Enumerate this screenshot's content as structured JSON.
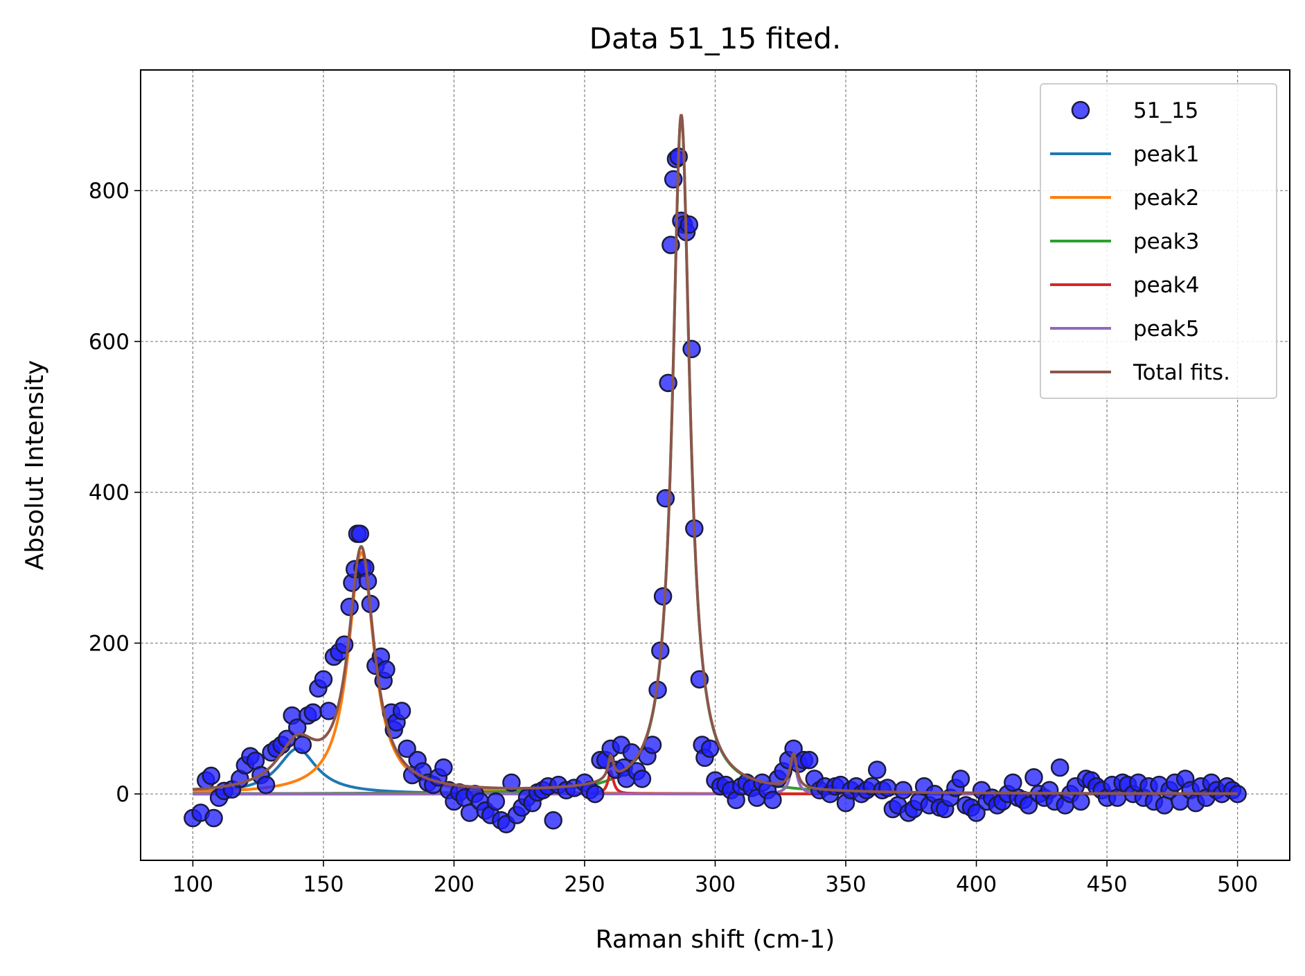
{
  "chart_data": {
    "type": "scatter",
    "title": "Data 51_15 fited.",
    "xlabel": "Raman shift (cm-1)",
    "ylabel": "Absolut Intensity",
    "xlim": [
      80,
      520
    ],
    "ylim": [
      -88,
      960
    ],
    "xticks": [
      100,
      150,
      200,
      250,
      300,
      350,
      400,
      450,
      500
    ],
    "yticks": [
      0,
      200,
      400,
      600,
      800
    ],
    "grid": true,
    "legend_position": "top-right",
    "legend": [
      "51_15",
      "peak1",
      "peak2",
      "peak3",
      "peak4",
      "peak5",
      "Total fits."
    ],
    "scatter": {
      "name": "51_15",
      "color": "#2020ff",
      "edge_color": "#1a1a40",
      "points": [
        [
          100,
          -32
        ],
        [
          103,
          -25
        ],
        [
          105,
          18
        ],
        [
          107,
          24
        ],
        [
          108,
          -32
        ],
        [
          110,
          -5
        ],
        [
          112,
          4
        ],
        [
          115,
          6
        ],
        [
          118,
          20
        ],
        [
          120,
          38
        ],
        [
          122,
          50
        ],
        [
          124,
          44
        ],
        [
          126,
          25
        ],
        [
          128,
          12
        ],
        [
          130,
          55
        ],
        [
          132,
          60
        ],
        [
          134,
          65
        ],
        [
          136,
          73
        ],
        [
          138,
          104
        ],
        [
          140,
          88
        ],
        [
          142,
          65
        ],
        [
          144,
          104
        ],
        [
          146,
          108
        ],
        [
          148,
          140
        ],
        [
          150,
          152
        ],
        [
          152,
          110
        ],
        [
          154,
          182
        ],
        [
          156,
          188
        ],
        [
          158,
          198
        ],
        [
          160,
          248
        ],
        [
          161,
          280
        ],
        [
          162,
          298
        ],
        [
          163,
          345
        ],
        [
          164,
          345
        ],
        [
          165,
          300
        ],
        [
          166,
          300
        ],
        [
          167,
          282
        ],
        [
          168,
          252
        ],
        [
          170,
          170
        ],
        [
          172,
          182
        ],
        [
          173,
          150
        ],
        [
          174,
          165
        ],
        [
          176,
          108
        ],
        [
          177,
          85
        ],
        [
          178,
          95
        ],
        [
          180,
          110
        ],
        [
          182,
          60
        ],
        [
          184,
          25
        ],
        [
          186,
          45
        ],
        [
          188,
          30
        ],
        [
          190,
          15
        ],
        [
          192,
          12
        ],
        [
          194,
          22
        ],
        [
          196,
          35
        ],
        [
          198,
          5
        ],
        [
          200,
          -10
        ],
        [
          202,
          2
        ],
        [
          204,
          -5
        ],
        [
          206,
          -25
        ],
        [
          208,
          0
        ],
        [
          210,
          -10
        ],
        [
          212,
          -22
        ],
        [
          214,
          -28
        ],
        [
          216,
          -10
        ],
        [
          218,
          -35
        ],
        [
          220,
          -40
        ],
        [
          222,
          15
        ],
        [
          224,
          -28
        ],
        [
          226,
          -18
        ],
        [
          228,
          -5
        ],
        [
          230,
          -12
        ],
        [
          232,
          2
        ],
        [
          234,
          5
        ],
        [
          236,
          10
        ],
        [
          238,
          -35
        ],
        [
          240,
          12
        ],
        [
          243,
          5
        ],
        [
          246,
          8
        ],
        [
          250,
          15
        ],
        [
          252,
          5
        ],
        [
          254,
          0
        ],
        [
          256,
          45
        ],
        [
          258,
          45
        ],
        [
          260,
          60
        ],
        [
          262,
          32
        ],
        [
          264,
          65
        ],
        [
          265,
          35
        ],
        [
          266,
          20
        ],
        [
          268,
          55
        ],
        [
          270,
          30
        ],
        [
          272,
          20
        ],
        [
          274,
          50
        ],
        [
          276,
          65
        ],
        [
          278,
          138
        ],
        [
          279,
          190
        ],
        [
          280,
          262
        ],
        [
          281,
          392
        ],
        [
          282,
          545
        ],
        [
          283,
          728
        ],
        [
          284,
          815
        ],
        [
          285,
          842
        ],
        [
          286,
          845
        ],
        [
          287,
          760
        ],
        [
          288,
          755
        ],
        [
          289,
          745
        ],
        [
          290,
          755
        ],
        [
          291,
          590
        ],
        [
          292,
          352
        ],
        [
          294,
          152
        ],
        [
          295,
          65
        ],
        [
          296,
          48
        ],
        [
          298,
          60
        ],
        [
          300,
          18
        ],
        [
          302,
          10
        ],
        [
          304,
          12
        ],
        [
          306,
          5
        ],
        [
          308,
          -8
        ],
        [
          310,
          10
        ],
        [
          312,
          15
        ],
        [
          314,
          8
        ],
        [
          316,
          -5
        ],
        [
          318,
          15
        ],
        [
          320,
          5
        ],
        [
          322,
          -8
        ],
        [
          324,
          20
        ],
        [
          326,
          30
        ],
        [
          328,
          45
        ],
        [
          330,
          60
        ],
        [
          332,
          40
        ],
        [
          334,
          45
        ],
        [
          336,
          45
        ],
        [
          338,
          20
        ],
        [
          340,
          5
        ],
        [
          342,
          10
        ],
        [
          344,
          0
        ],
        [
          346,
          10
        ],
        [
          348,
          12
        ],
        [
          350,
          -12
        ],
        [
          352,
          5
        ],
        [
          354,
          10
        ],
        [
          356,
          0
        ],
        [
          358,
          5
        ],
        [
          360,
          10
        ],
        [
          362,
          32
        ],
        [
          364,
          5
        ],
        [
          366,
          8
        ],
        [
          368,
          -20
        ],
        [
          370,
          -15
        ],
        [
          372,
          5
        ],
        [
          374,
          -25
        ],
        [
          376,
          -20
        ],
        [
          378,
          -10
        ],
        [
          380,
          10
        ],
        [
          382,
          -15
        ],
        [
          384,
          0
        ],
        [
          386,
          -18
        ],
        [
          388,
          -20
        ],
        [
          390,
          -5
        ],
        [
          392,
          8
        ],
        [
          394,
          20
        ],
        [
          396,
          -15
        ],
        [
          398,
          -18
        ],
        [
          400,
          -25
        ],
        [
          402,
          5
        ],
        [
          404,
          -10
        ],
        [
          406,
          -5
        ],
        [
          408,
          -15
        ],
        [
          410,
          -10
        ],
        [
          412,
          0
        ],
        [
          414,
          15
        ],
        [
          416,
          -5
        ],
        [
          418,
          -8
        ],
        [
          420,
          -15
        ],
        [
          422,
          22
        ],
        [
          424,
          0
        ],
        [
          426,
          -5
        ],
        [
          428,
          5
        ],
        [
          430,
          -10
        ],
        [
          432,
          35
        ],
        [
          434,
          -15
        ],
        [
          436,
          0
        ],
        [
          438,
          10
        ],
        [
          440,
          -10
        ],
        [
          442,
          20
        ],
        [
          444,
          18
        ],
        [
          446,
          10
        ],
        [
          448,
          5
        ],
        [
          450,
          -5
        ],
        [
          452,
          12
        ],
        [
          454,
          -5
        ],
        [
          456,
          15
        ],
        [
          458,
          12
        ],
        [
          460,
          0
        ],
        [
          462,
          15
        ],
        [
          464,
          -5
        ],
        [
          466,
          10
        ],
        [
          468,
          -10
        ],
        [
          470,
          12
        ],
        [
          472,
          -15
        ],
        [
          474,
          5
        ],
        [
          476,
          15
        ],
        [
          478,
          -10
        ],
        [
          480,
          20
        ],
        [
          482,
          5
        ],
        [
          484,
          -12
        ],
        [
          486,
          10
        ],
        [
          488,
          -5
        ],
        [
          490,
          15
        ],
        [
          492,
          5
        ],
        [
          494,
          0
        ],
        [
          496,
          10
        ],
        [
          498,
          5
        ],
        [
          500,
          0
        ]
      ]
    },
    "series": [
      {
        "name": "peak1",
        "shape": "lorentzian",
        "color": "#1f77b4",
        "center": 140,
        "amplitude": 60,
        "fwhm": 18
      },
      {
        "name": "peak2",
        "shape": "lorentzian",
        "color": "#ff7f0e",
        "center": 164.5,
        "amplitude": 320,
        "fwhm": 12
      },
      {
        "name": "peak3",
        "shape": "lorentzian",
        "color": "#2ca02c",
        "center": 287,
        "amplitude": 900,
        "fwhm": 8
      },
      {
        "name": "peak4",
        "shape": "lorentzian",
        "color": "#d62728",
        "center": 260,
        "amplitude": 30,
        "fwhm": 2.5
      },
      {
        "name": "peak5",
        "shape": "lorentzian",
        "color": "#9467bd",
        "center": 330,
        "amplitude": 45,
        "fwhm": 3
      },
      {
        "name": "Total fits.",
        "shape": "sum",
        "color": "#8c564b"
      }
    ]
  }
}
